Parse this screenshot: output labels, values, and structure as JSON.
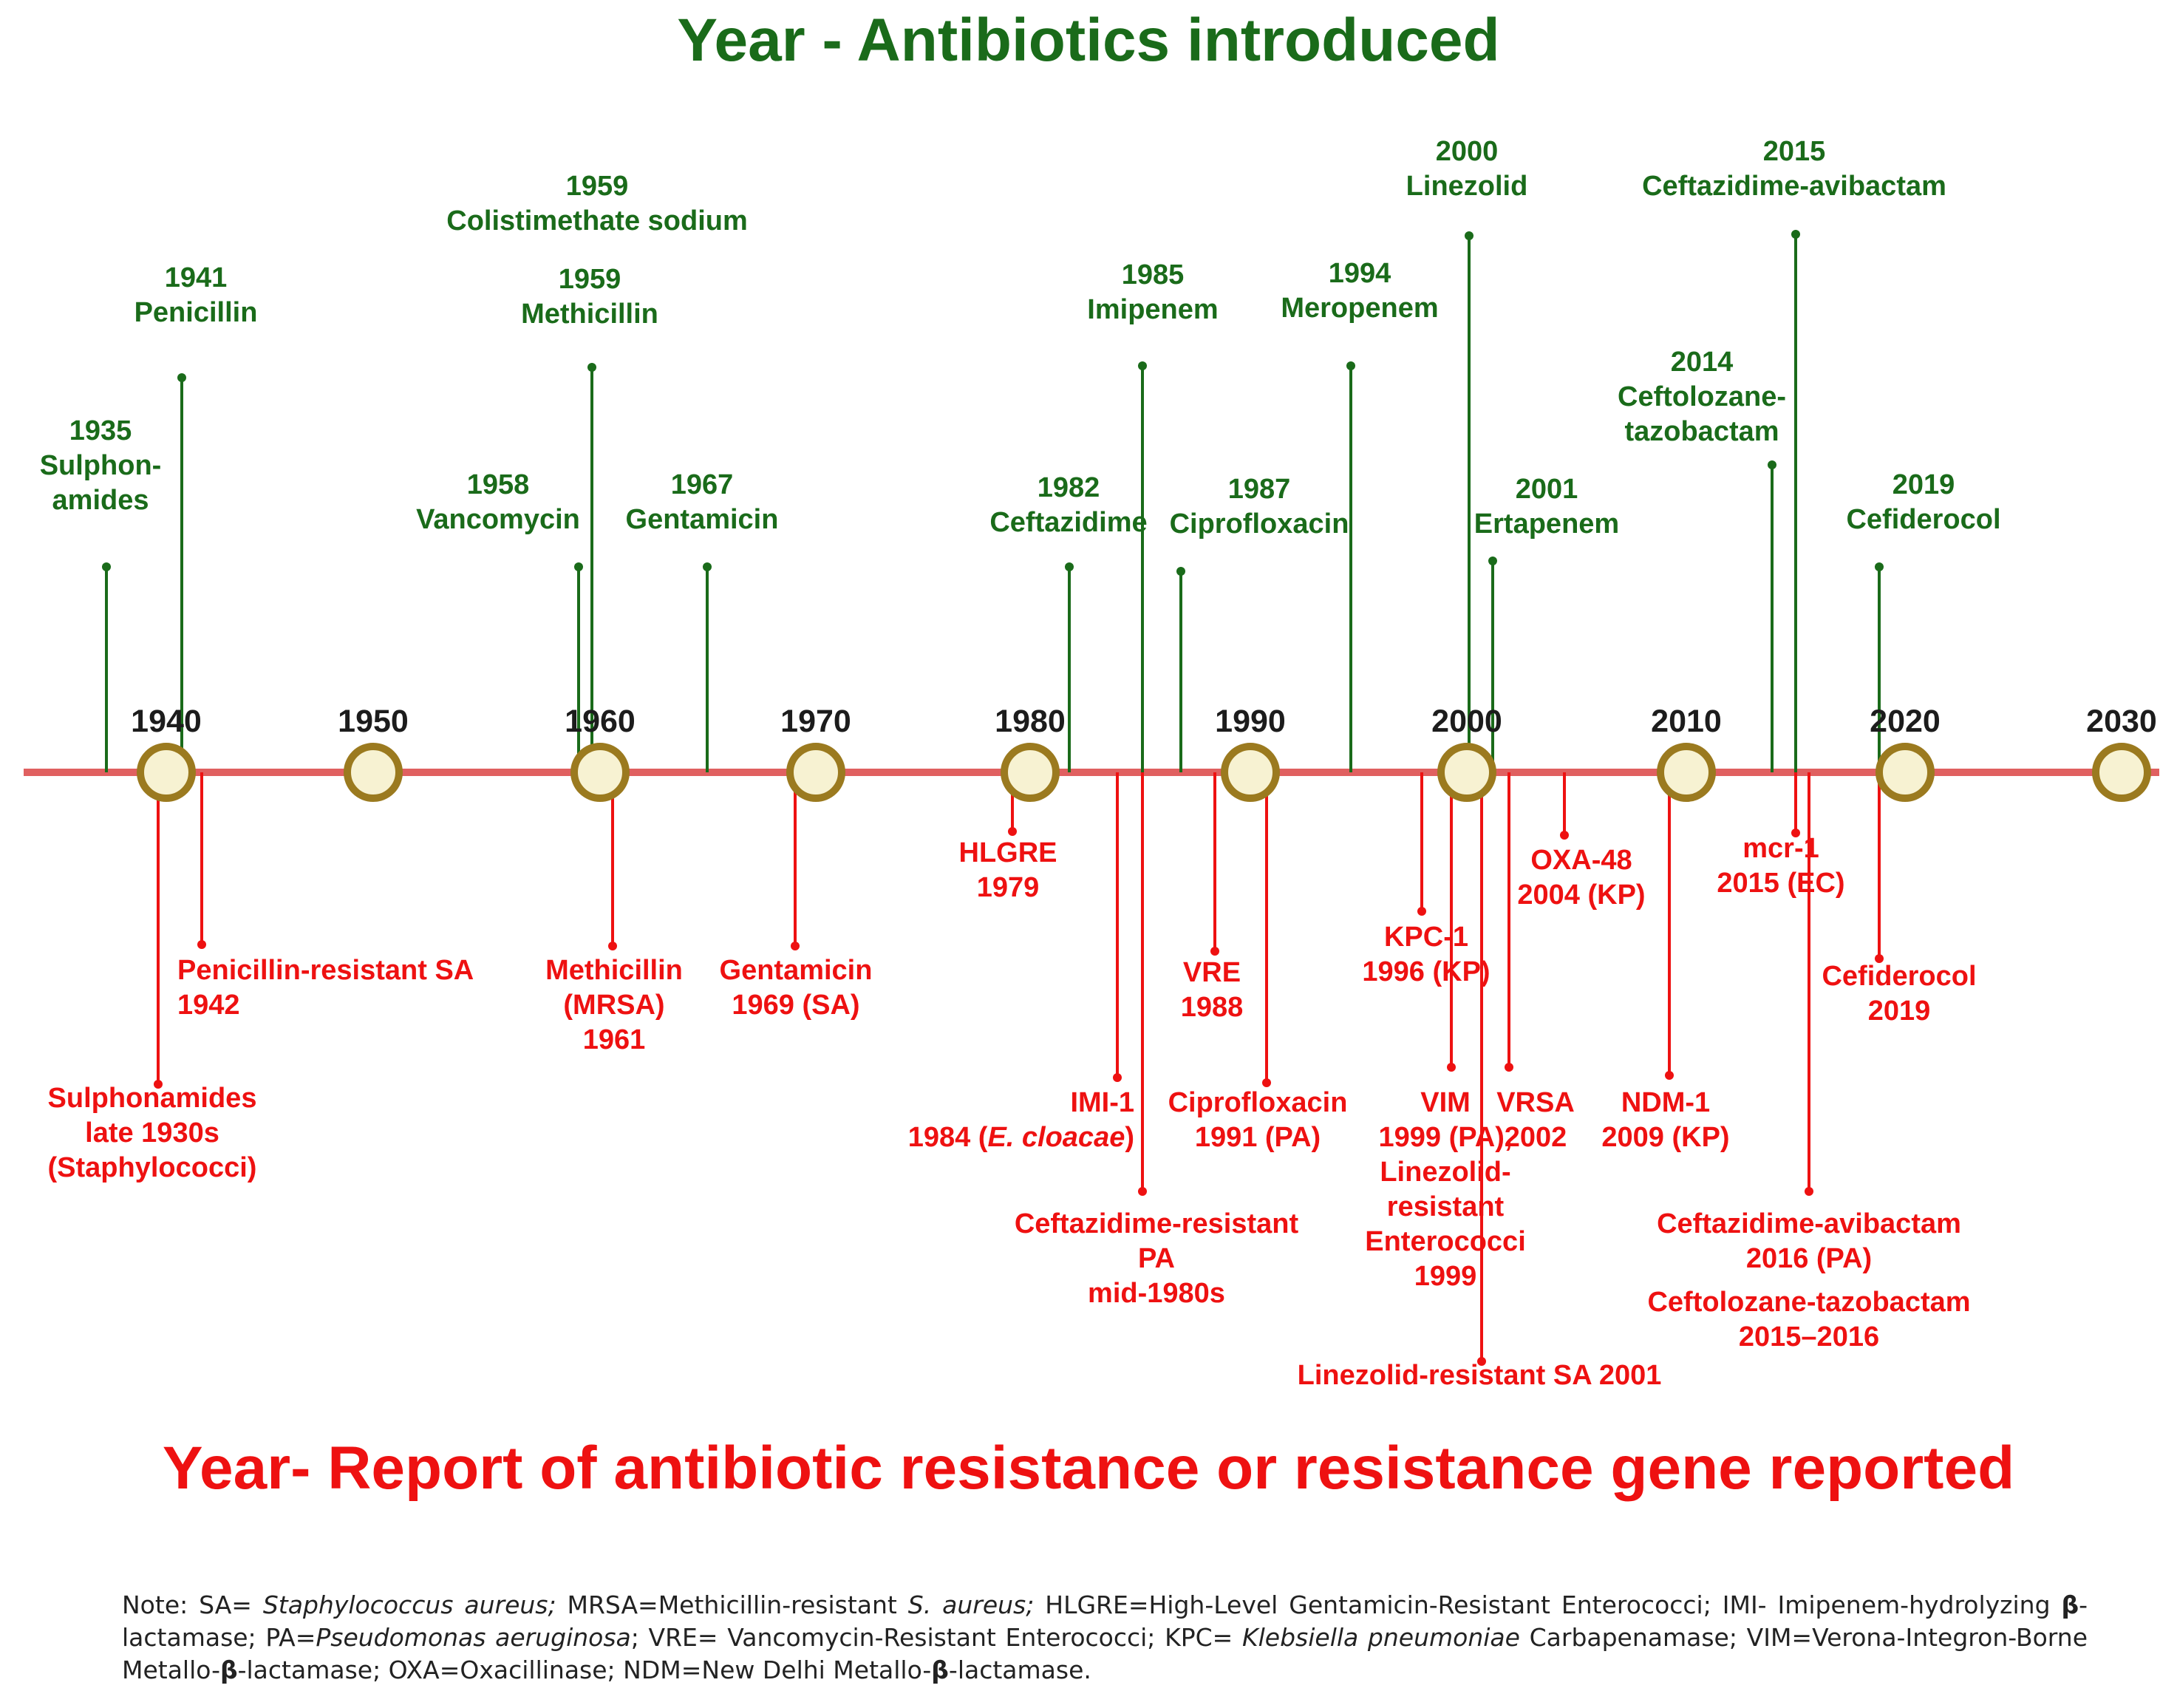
{
  "titles": {
    "top": "Year - Antibiotics introduced",
    "bottom": "Year- Report of antibiotic resistance or resistance gene reported"
  },
  "colors": {
    "green": "#1a6b1a",
    "red": "#ee1111",
    "axis": "#e06060",
    "circle_fill": "#f7f2d2",
    "circle_stroke": "#9b7a1f"
  },
  "axis_years": [
    "1940",
    "1950",
    "1960",
    "1970",
    "1980",
    "1990",
    "2000",
    "2010",
    "2020",
    "2030"
  ],
  "antibiotics": [
    {
      "id": "sulphonamides",
      "lines": [
        "1935",
        "Sulphon-",
        "amides"
      ]
    },
    {
      "id": "penicillin",
      "lines": [
        "1941",
        "Penicillin"
      ]
    },
    {
      "id": "vancomycin",
      "lines": [
        "1958",
        "Vancomycin"
      ]
    },
    {
      "id": "methicillin",
      "lines": [
        "1959",
        "Methicillin"
      ]
    },
    {
      "id": "colistimethate",
      "lines": [
        "1959",
        "Colistimethate sodium"
      ]
    },
    {
      "id": "gentamicin",
      "lines": [
        "1967",
        "Gentamicin"
      ]
    },
    {
      "id": "ceftazidime",
      "lines": [
        "1982",
        "Ceftazidime"
      ]
    },
    {
      "id": "imipenem",
      "lines": [
        "1985",
        "Imipenem"
      ]
    },
    {
      "id": "ciprofloxacin",
      "lines": [
        "1987",
        "Ciprofloxacin"
      ]
    },
    {
      "id": "meropenem",
      "lines": [
        "1994",
        "Meropenem"
      ]
    },
    {
      "id": "linezolid",
      "lines": [
        "2000",
        "Linezolid"
      ]
    },
    {
      "id": "ertapenem",
      "lines": [
        "2001",
        "Ertapenem"
      ]
    },
    {
      "id": "ceftolozane-tazobactam",
      "lines": [
        "2014",
        "Ceftolozane-",
        "tazobactam"
      ]
    },
    {
      "id": "ceftazidime-avibactam",
      "lines": [
        "2015",
        "Ceftazidime-avibactam"
      ]
    },
    {
      "id": "cefiderocol",
      "lines": [
        "2019",
        "Cefiderocol"
      ]
    }
  ],
  "resistance": [
    {
      "id": "sulphonamides-resistance",
      "lines": [
        "Sulphonamides",
        "late 1930s",
        "(Staphylococci)"
      ]
    },
    {
      "id": "penicillin-resistance",
      "lines": [
        "Penicillin-resistant SA",
        "1942"
      ]
    },
    {
      "id": "mrsa",
      "lines": [
        "Methicillin",
        "(MRSA)",
        "1961"
      ]
    },
    {
      "id": "gentamicin-resistance",
      "lines": [
        "Gentamicin",
        "1969 (SA)"
      ]
    },
    {
      "id": "hlgre",
      "lines": [
        "HLGRE",
        "1979"
      ]
    },
    {
      "id": "imi-1",
      "lines": [
        "IMI-1",
        "1984 (E. cloacae)"
      ]
    },
    {
      "id": "ceftazidime-resistance",
      "lines": [
        "Ceftazidime-resistant",
        "PA",
        "mid-1980s"
      ]
    },
    {
      "id": "vre",
      "lines": [
        "VRE",
        "1988"
      ]
    },
    {
      "id": "ciprofloxacin-resistance",
      "lines": [
        "Ciprofloxacin",
        "1991 (PA)"
      ]
    },
    {
      "id": "kpc-1",
      "lines": [
        "KPC-1",
        "1996 (KP)"
      ]
    },
    {
      "id": "vim",
      "lines": [
        "VIM",
        "1999 (PA),",
        "Linezolid-",
        "resistant",
        "Enterococci",
        "1999"
      ]
    },
    {
      "id": "linezolid-sa",
      "lines": [
        "Linezolid-resistant SA 2001"
      ]
    },
    {
      "id": "vrsa",
      "lines": [
        "VRSA",
        "2002"
      ]
    },
    {
      "id": "oxa-48",
      "lines": [
        "OXA-48",
        "2004 (KP)"
      ]
    },
    {
      "id": "ndm-1",
      "lines": [
        "NDM-1",
        "2009 (KP)"
      ]
    },
    {
      "id": "mcr-1",
      "lines": [
        "mcr-1",
        "2015 (EC)"
      ]
    },
    {
      "id": "ceftazidime-avibactam-resistance",
      "lines": [
        "Ceftazidime-avibactam",
        "2016 (PA)"
      ]
    },
    {
      "id": "ceftolozane-tazobactam-resistance",
      "lines": [
        "Ceftolozane-tazobactam",
        "2015–2016"
      ]
    },
    {
      "id": "cefiderocol-resistance",
      "lines": [
        "Cefiderocol",
        "2019"
      ]
    }
  ],
  "note": {
    "p1": "Note: SA= ",
    "i1": "Staphylococcus aureus;",
    "p2": " MRSA=Methicillin-resistant ",
    "i2": "S. aureus;",
    "p3": " HLGRE=High-Level Gentamicin-Resistant Enterococci; IMI- Imipenem-hydrolyzing ",
    "b1": "β",
    "p4": "-lactamase; PA=",
    "i3": "Pseudomonas aeruginosa",
    "p5": "; VRE= Vancomycin-Resistant Enterococci; KPC= ",
    "i4": "Klebsiella pneumoniae",
    "p6": " Carbapenamase; VIM=Verona-Integron-Borne Metallo-",
    "b2": "β",
    "p7": "-lactamase; OXA=Oxacillinase; NDM=New Delhi Metallo-",
    "b3": "β",
    "p8": "-lactamase."
  }
}
